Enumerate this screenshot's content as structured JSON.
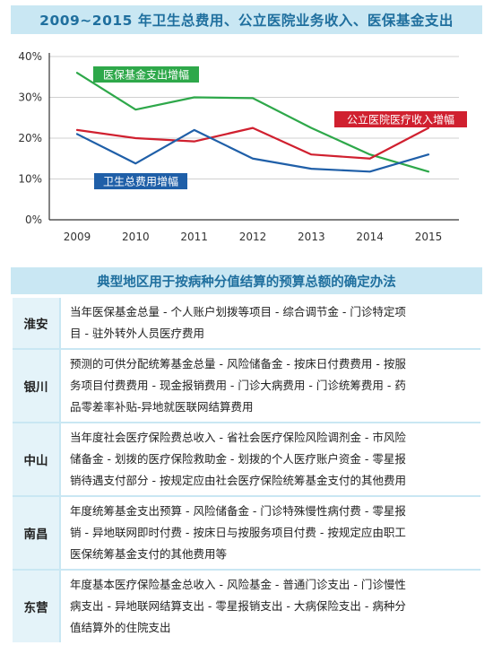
{
  "title": "2009~2015 年卫生总费用、公立医院业务收入、医保基金支出",
  "chart_data": {
    "type": "line",
    "x": [
      "2009",
      "2010",
      "2011",
      "2012",
      "2013",
      "2014",
      "2015"
    ],
    "yticks": [
      "0%",
      "10%",
      "20%",
      "30%",
      "40%"
    ],
    "ylim": [
      0,
      40
    ],
    "grid": true,
    "series": [
      {
        "name": "医保基金支出增幅",
        "color": "#2ea84a",
        "values": [
          36,
          27,
          30,
          29.8,
          22.5,
          16,
          11.8
        ]
      },
      {
        "name": "公立医院医疗收入增幅",
        "color": "#d0202f",
        "values": [
          22,
          20,
          19.2,
          22.5,
          16,
          15,
          22.5
        ]
      },
      {
        "name": "卫生总费用增幅",
        "color": "#1f5fa8",
        "values": [
          21,
          13.8,
          22,
          15,
          12.5,
          11.8,
          16
        ]
      }
    ]
  },
  "table": {
    "title": "典型地区用于按病种分值结算的预算总额的确定办法",
    "rows": [
      {
        "region": "淮安",
        "lines": [
          "当年医保基金总量 - 个人账户划拨等项目 - 综合调节金 - 门诊特定项",
          "目 - 驻外转外人员医疗费用"
        ]
      },
      {
        "region": "银川",
        "lines": [
          "预测的可供分配统筹基金总量 - 风险储备金 - 按床日付费费用 - 按服",
          "务项目付费费用 - 现金报销费用 - 门诊大病费用 - 门诊统筹费用 - 药",
          "品零差率补贴-异地就医联网结算费用"
        ]
      },
      {
        "region": "中山",
        "lines": [
          "当年度社会医疗保险费总收入 - 省社会医疗保险风险调剂金 - 市风险",
          "储备金 - 划拨的医疗保险救助金 - 划拨的个人医疗账户资金 - 零星报",
          "销待遇支付部分 - 按规定应由社会医疗保险统筹基金支付的其他费用"
        ]
      },
      {
        "region": "南昌",
        "lines": [
          "年度统筹基金支出预算 - 风险储备金 - 门诊特殊慢性病付费 - 零星报",
          "销 - 异地联网即时付费 - 按床日与按服务项目付费 - 按规定应由职工",
          "医保统筹基金支付的其他费用等"
        ]
      },
      {
        "region": "东营",
        "lines": [
          "年度基本医疗保险基金总收入 - 风险基金 - 普通门诊支出 - 门诊慢性",
          "病支出 - 异地联网结算支出 - 零星报销支出 - 大病保险支出 - 病种分",
          "值结算外的住院支出"
        ]
      }
    ]
  }
}
